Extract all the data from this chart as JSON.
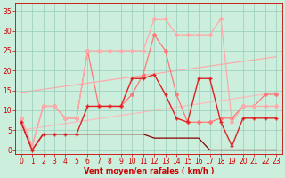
{
  "bg_color": "#cceedd",
  "grid_color": "#99ccbb",
  "xlabel": "Vent moyen/en rafales ( km/h )",
  "xlabel_color": "#cc0000",
  "xlabel_fontsize": 6,
  "tick_color": "#cc0000",
  "tick_fontsize": 5.5,
  "ylim": [
    -1,
    37
  ],
  "xlim": [
    -0.5,
    23.5
  ],
  "yticks": [
    0,
    5,
    10,
    15,
    20,
    25,
    30,
    35
  ],
  "xticks": [
    0,
    1,
    2,
    3,
    4,
    5,
    6,
    7,
    8,
    9,
    10,
    11,
    12,
    13,
    14,
    15,
    16,
    17,
    18,
    19,
    20,
    21,
    22,
    23
  ],
  "lines": [
    {
      "x": [
        0,
        23
      ],
      "y": [
        14.5,
        23.5
      ],
      "color": "#ffaaaa",
      "linewidth": 0.9,
      "marker": null,
      "zorder": 1
    },
    {
      "x": [
        0,
        23
      ],
      "y": [
        5.0,
        14.5
      ],
      "color": "#ffbbbb",
      "linewidth": 0.9,
      "marker": null,
      "zorder": 1
    },
    {
      "x": [
        0,
        1,
        2,
        3,
        4,
        5,
        6,
        7,
        8,
        9,
        10,
        11,
        12,
        13,
        14,
        15,
        16,
        17,
        18,
        19,
        20,
        21,
        22,
        23
      ],
      "y": [
        7,
        0,
        4,
        4,
        4,
        4,
        4,
        4,
        4,
        4,
        4,
        4,
        3,
        3,
        3,
        3,
        3,
        0,
        0,
        0,
        0,
        0,
        0,
        0
      ],
      "color": "#880000",
      "linewidth": 0.9,
      "marker": null,
      "zorder": 2
    },
    {
      "x": [
        0,
        1,
        2,
        3,
        4,
        5,
        6,
        7,
        8,
        9,
        10,
        11,
        12,
        13,
        14,
        15,
        16,
        17,
        18,
        19,
        20,
        21,
        22,
        23
      ],
      "y": [
        7,
        0,
        4,
        4,
        4,
        4,
        11,
        11,
        11,
        11,
        18,
        18,
        19,
        14,
        8,
        7,
        18,
        18,
        7,
        1,
        8,
        8,
        8,
        8
      ],
      "color": "#dd2222",
      "linewidth": 1.0,
      "marker": "+",
      "markersize": 3,
      "zorder": 3
    },
    {
      "x": [
        0,
        1,
        2,
        3,
        4,
        5,
        6,
        7,
        8,
        9,
        10,
        11,
        12,
        13,
        14,
        15,
        16,
        17,
        18,
        19,
        20,
        21,
        22,
        23
      ],
      "y": [
        8,
        1,
        11,
        11,
        8,
        8,
        25,
        11,
        11,
        11,
        14,
        19,
        29,
        25,
        14,
        7,
        7,
        7,
        8,
        8,
        11,
        11,
        14,
        14
      ],
      "color": "#ff7777",
      "linewidth": 0.9,
      "marker": "D",
      "markersize": 2,
      "zorder": 2
    },
    {
      "x": [
        0,
        1,
        2,
        3,
        4,
        5,
        6,
        7,
        8,
        9,
        10,
        11,
        12,
        13,
        14,
        15,
        16,
        17,
        18,
        19,
        20,
        21,
        22,
        23
      ],
      "y": [
        8,
        1,
        11,
        11,
        8,
        8,
        25,
        25,
        25,
        25,
        25,
        25,
        33,
        33,
        29,
        29,
        29,
        29,
        33,
        7,
        11,
        11,
        11,
        11
      ],
      "color": "#ffaaaa",
      "linewidth": 0.9,
      "marker": "D",
      "markersize": 2,
      "zorder": 2
    }
  ]
}
